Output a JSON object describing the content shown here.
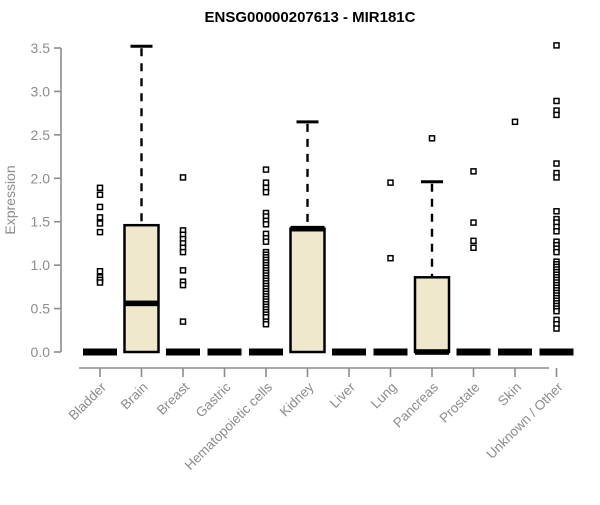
{
  "chart_data": {
    "type": "boxplot",
    "title": "ENSG00000207613 - MIR181C",
    "ylabel": "Expression",
    "ylim": [
      0,
      3.5
    ],
    "yticks": [
      "0.0",
      "0.5",
      "1.0",
      "1.5",
      "2.0",
      "2.5",
      "3.0",
      "3.5"
    ],
    "grid": false,
    "legend": "none",
    "colors": {
      "box_fill": "#efe8cd",
      "box_stroke": "#000000",
      "axis": "#8c8c8c",
      "tick_label": "#8c8c8c",
      "title": "#000000",
      "outlier_stroke": "#000000",
      "background": "#ffffff"
    },
    "categories": [
      "Bladder",
      "Brain",
      "Breast",
      "Gastric",
      "Hematopoietic cells",
      "Kidney",
      "Liver",
      "Lung",
      "Pancreas",
      "Prostate",
      "Skin",
      "Unknown / Other"
    ],
    "series": [
      {
        "category": "Bladder",
        "q1": 0,
        "median": 0,
        "q3": 0,
        "whisker_low": 0,
        "whisker_high": 0,
        "outliers": [
          1.89,
          1.81,
          1.67,
          1.55,
          1.48,
          1.38,
          0.93,
          0.86,
          0.83,
          0.8
        ]
      },
      {
        "category": "Brain",
        "q1": 0,
        "median": 0.56,
        "q3": 1.46,
        "whisker_low": 0,
        "whisker_high": 3.52,
        "outliers": []
      },
      {
        "category": "Breast",
        "q1": 0,
        "median": 0,
        "q3": 0,
        "whisker_low": 0,
        "whisker_high": 0,
        "outliers": [
          2.01,
          1.4,
          1.35,
          1.3,
          1.25,
          1.2,
          1.15,
          0.94,
          0.81,
          0.77,
          0.35
        ]
      },
      {
        "category": "Gastric",
        "q1": 0,
        "median": 0,
        "q3": 0,
        "whisker_low": 0,
        "whisker_high": 0,
        "outliers": []
      },
      {
        "category": "Hematopoietic cells",
        "q1": 0,
        "median": 0,
        "q3": 0,
        "whisker_low": 0,
        "whisker_high": 0,
        "outliers": [
          2.1,
          1.95,
          1.89,
          1.84,
          1.6,
          1.56,
          1.51,
          1.47,
          1.36,
          1.31,
          1.27,
          1.15,
          1.12,
          1.09,
          1.06,
          1.03,
          1.0,
          0.97,
          0.94,
          0.91,
          0.88,
          0.85,
          0.82,
          0.79,
          0.76,
          0.73,
          0.7,
          0.67,
          0.64,
          0.61,
          0.58,
          0.55,
          0.52,
          0.49,
          0.46,
          0.43,
          0.4,
          0.35,
          0.32
        ]
      },
      {
        "category": "Kidney",
        "q1": 0,
        "median": 1.42,
        "q3": 1.42,
        "whisker_low": 0,
        "whisker_high": 2.65,
        "outliers": []
      },
      {
        "category": "Liver",
        "q1": 0,
        "median": 0,
        "q3": 0,
        "whisker_low": 0,
        "whisker_high": 0,
        "outliers": []
      },
      {
        "category": "Lung",
        "q1": 0,
        "median": 0,
        "q3": 0,
        "whisker_low": 0,
        "whisker_high": 0,
        "outliers": [
          1.95,
          1.08
        ]
      },
      {
        "category": "Pancreas",
        "q1": 0,
        "median": 0,
        "q3": 0.86,
        "whisker_low": 0,
        "whisker_high": 1.96,
        "outliers": [
          2.46
        ]
      },
      {
        "category": "Prostate",
        "q1": 0,
        "median": 0,
        "q3": 0,
        "whisker_low": 0,
        "whisker_high": 0,
        "outliers": [
          2.08,
          1.49,
          1.28,
          1.2
        ]
      },
      {
        "category": "Skin",
        "q1": 0,
        "median": 0,
        "q3": 0,
        "whisker_low": 0,
        "whisker_high": 0,
        "outliers": [
          2.65
        ]
      },
      {
        "category": "Unknown / Other",
        "q1": 0,
        "median": 0,
        "q3": 0,
        "whisker_low": 0,
        "whisker_high": 0,
        "outliers": [
          3.53,
          2.89,
          2.78,
          2.73,
          2.17,
          2.06,
          2.01,
          1.62,
          1.53,
          1.49,
          1.44,
          1.39,
          1.27,
          1.23,
          1.19,
          1.15,
          1.04,
          1.01,
          0.98,
          0.95,
          0.92,
          0.89,
          0.86,
          0.83,
          0.8,
          0.77,
          0.74,
          0.71,
          0.68,
          0.65,
          0.62,
          0.59,
          0.56,
          0.53,
          0.5,
          0.47,
          0.37,
          0.32,
          0.27
        ]
      }
    ]
  }
}
